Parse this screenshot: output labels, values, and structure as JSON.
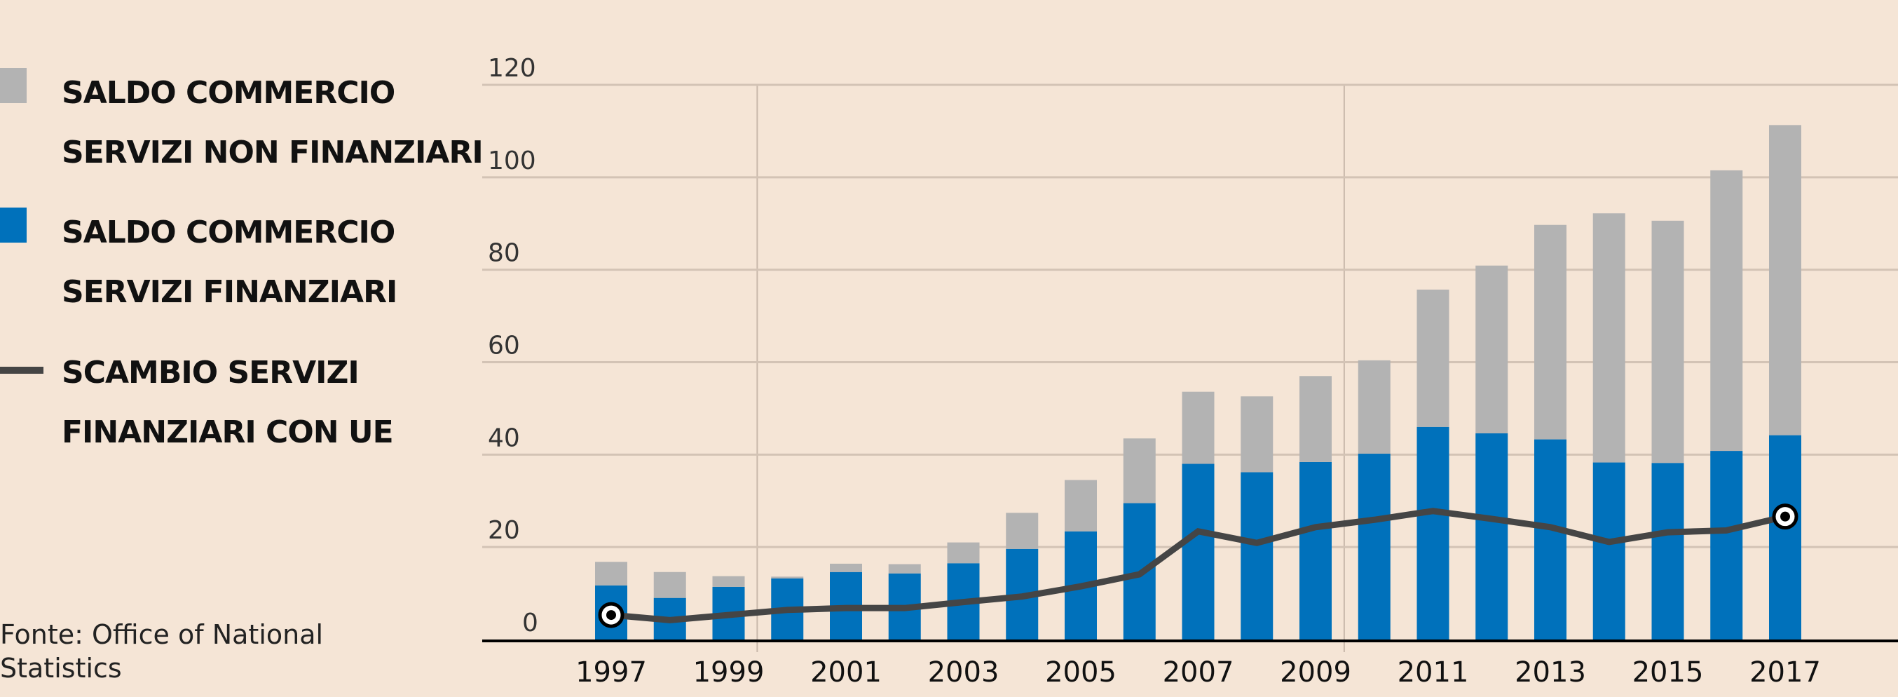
{
  "chart_data": {
    "type": "bar",
    "stacked": true,
    "title": "",
    "xlabel": "",
    "ylabel": "",
    "ylim": [
      0,
      120
    ],
    "yticks": [
      0,
      20,
      40,
      60,
      80,
      100,
      120
    ],
    "grid": true,
    "legend_position": "left",
    "categories": [
      1997,
      1998,
      1999,
      2000,
      2001,
      2002,
      2003,
      2004,
      2005,
      2006,
      2007,
      2008,
      2009,
      2010,
      2011,
      2012,
      2013,
      2014,
      2015,
      2016,
      2017
    ],
    "xtick_labels": [
      "1997",
      "1999",
      "2001",
      "2003",
      "2005",
      "2007",
      "2009",
      "2011",
      "2013",
      "2015",
      "2017"
    ],
    "series": [
      {
        "name": "SALDO COMMERCIO SERVIZI FINANZIARI",
        "legend_lines": [
          "SALDO COMMERCIO",
          "SERVIZI FINANZIARI"
        ],
        "type": "bar",
        "color": "#0071bb",
        "values": [
          11.7,
          9.0,
          11.4,
          13.2,
          14.6,
          14.3,
          16.5,
          19.6,
          23.4,
          29.5,
          38.0,
          36.2,
          38.4,
          40.2,
          46.0,
          44.6,
          43.3,
          38.3,
          38.2,
          40.8,
          44.2
        ]
      },
      {
        "name": "SALDO COMMERCIO SERVIZI NON FINANZIARI",
        "legend_lines": [
          "SALDO COMMERCIO",
          "SERVIZI NON FINANZIARI"
        ],
        "type": "bar",
        "color": "#b3b3b3",
        "values": [
          5.1,
          5.6,
          2.3,
          0.4,
          1.8,
          2.0,
          4.5,
          7.8,
          11.1,
          14.0,
          15.6,
          16.4,
          18.6,
          20.2,
          29.7,
          36.3,
          46.4,
          53.9,
          52.4,
          60.7,
          67.1
        ]
      },
      {
        "name": "SCAMBIO SERVIZI FINANZIARI CON UE",
        "legend_lines": [
          "SCAMBIO SERVIZI",
          "FINANZIARI CON UE"
        ],
        "type": "line",
        "color": "#454545",
        "values": [
          5.3,
          4.2,
          5.3,
          6.4,
          6.8,
          6.8,
          8.1,
          9.3,
          11.5,
          14.1,
          23.4,
          20.9,
          24.3,
          25.9,
          27.8,
          26.1,
          24.3,
          21.1,
          23.2,
          23.6,
          26.6
        ]
      }
    ],
    "source": [
      "Fonte: Office of National",
      "Statistics"
    ]
  }
}
